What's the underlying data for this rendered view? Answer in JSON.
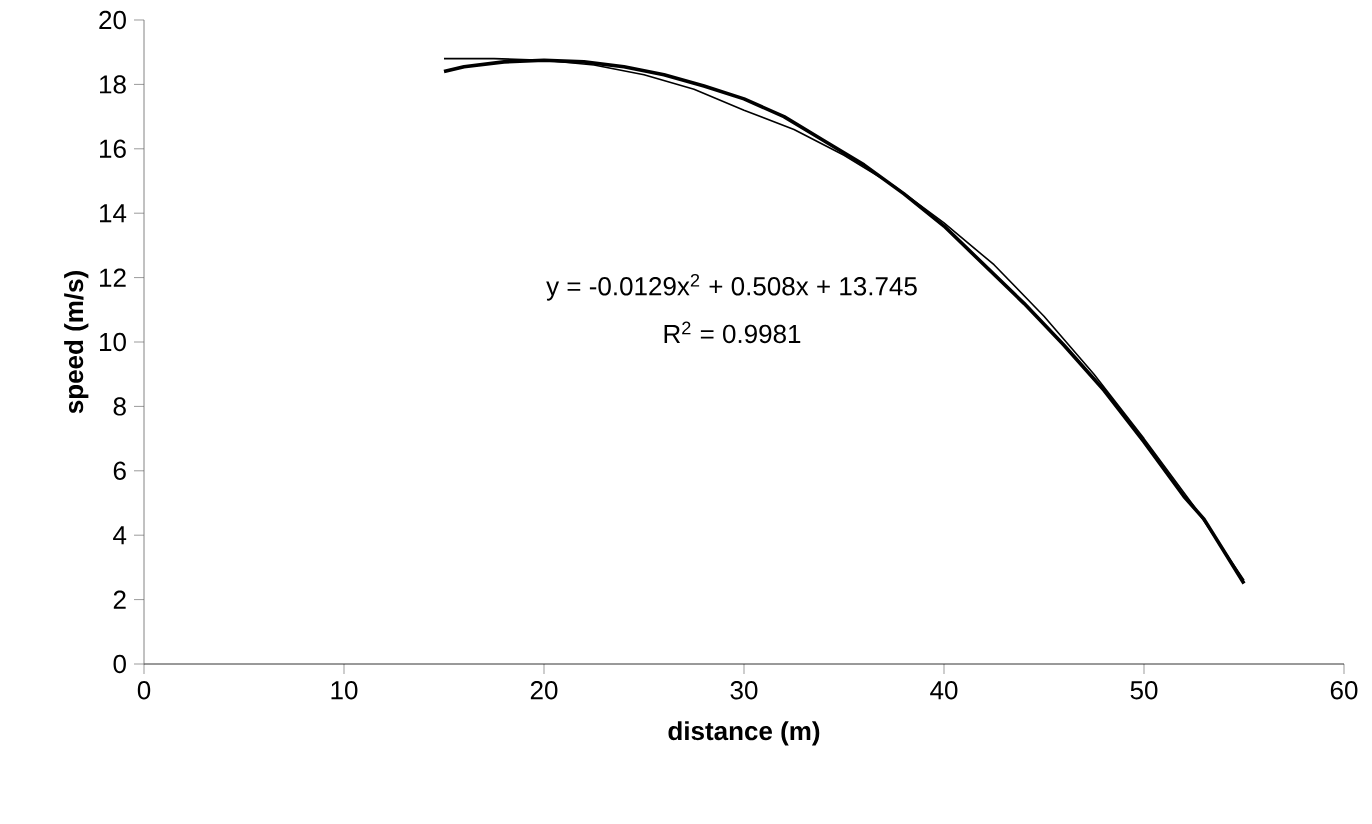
{
  "chart_data": {
    "type": "line",
    "xlabel": "distance (m)",
    "ylabel": "speed (m/s)",
    "xlim": [
      0,
      60
    ],
    "ylim": [
      0,
      20
    ],
    "xticks": [
      0,
      10,
      20,
      30,
      40,
      50,
      60
    ],
    "yticks": [
      0,
      2,
      4,
      6,
      8,
      10,
      12,
      14,
      16,
      18,
      20
    ],
    "grid": false,
    "marker": "none",
    "line_style": "solid",
    "annotations": [
      "y = -0.0129x$^{2}$ + 0.508x + 13.745",
      "R$^{2}$ = 0.9981"
    ],
    "series": [
      {
        "color": "#000000",
        "x": [
          15,
          16,
          18,
          20,
          22,
          24,
          26,
          28,
          30,
          32,
          34,
          36,
          38,
          40,
          42,
          44,
          46,
          48,
          50,
          52,
          53,
          54,
          55
        ],
        "values": [
          18.4,
          18.55,
          18.7,
          18.75,
          18.7,
          18.55,
          18.3,
          17.95,
          17.55,
          17.0,
          16.25,
          15.5,
          14.6,
          13.6,
          12.4,
          11.2,
          9.9,
          8.5,
          6.9,
          5.2,
          4.5,
          3.5,
          2.5
        ]
      },
      {
        "color": "#000000",
        "x": [
          15,
          17.5,
          20,
          22.5,
          25,
          27.5,
          30,
          32.5,
          35,
          37.5,
          40,
          42.5,
          45,
          47.5,
          50,
          52.5,
          55
        ],
        "values": [
          18.8,
          18.8,
          18.75,
          18.6,
          18.3,
          17.85,
          17.2,
          16.6,
          15.8,
          14.85,
          13.7,
          12.4,
          10.8,
          9.0,
          7.0,
          4.9,
          2.6
        ]
      }
    ]
  }
}
